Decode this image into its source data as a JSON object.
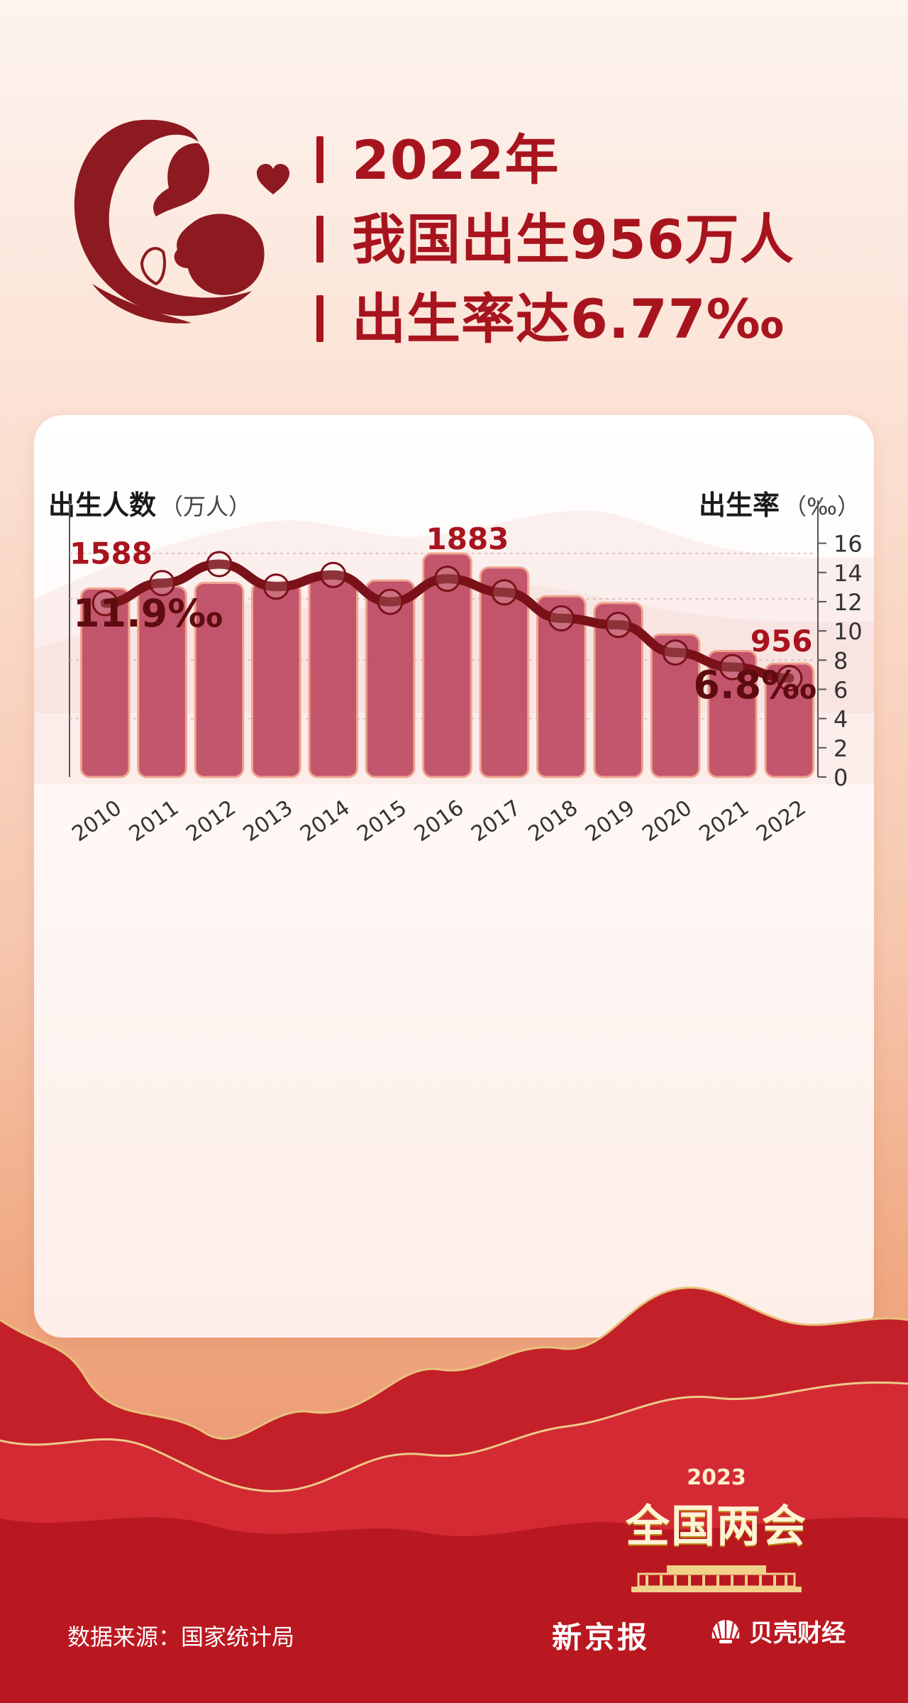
{
  "headline": {
    "lines": [
      "2022年",
      "我国出生956万人",
      "出生率达6.77‰"
    ]
  },
  "icons": {
    "hero": "mother-baby-icon",
    "heart": "heart-icon",
    "building": "great-hall-icon",
    "shell": "shell-logo-icon"
  },
  "colors": {
    "bar": "#c04e66",
    "bar_stroke": "#f0a08a",
    "line": "#7a1118",
    "accent": "#a8141e"
  },
  "chart_data": {
    "type": "bar",
    "categories": [
      "2010",
      "2011",
      "2012",
      "2013",
      "2014",
      "2015",
      "2016",
      "2017",
      "2018",
      "2019",
      "2020",
      "2021",
      "2022"
    ],
    "left_axis_title": "出生人数",
    "left_axis_unit": "（万人）",
    "right_axis_title": "出生率",
    "right_axis_unit": "（‰）",
    "series": [
      {
        "name": "出生人数",
        "type": "bar",
        "axis": "left",
        "values": [
          1588,
          1604,
          1635,
          1640,
          1687,
          1655,
          1883,
          1765,
          1523,
          1465,
          1200,
          1062,
          956
        ]
      },
      {
        "name": "出生率",
        "type": "line",
        "axis": "right",
        "values": [
          11.9,
          13.27,
          14.57,
          13.03,
          13.83,
          11.99,
          13.57,
          12.64,
          10.86,
          10.41,
          8.52,
          7.52,
          6.77
        ]
      }
    ],
    "right_yticks": [
      "0",
      "2",
      "4",
      "6",
      "8",
      "10",
      "12",
      "14",
      "16"
    ],
    "ylim_right": [
      0,
      17
    ],
    "annotations": [
      "1588",
      "1883",
      "956",
      "11.9‰",
      "6.8‰"
    ]
  },
  "footer": {
    "source": "数据来源：国家统计局",
    "event_year": "2023",
    "event_name": "全国两会",
    "brand_1": "新京报",
    "brand_2": "贝壳财经"
  }
}
